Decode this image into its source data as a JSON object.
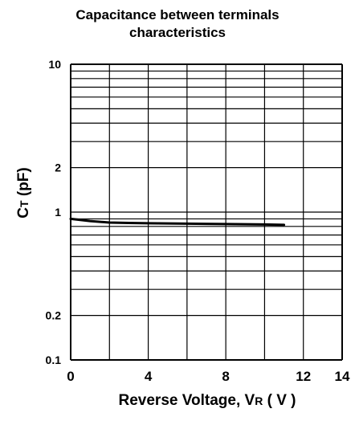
{
  "chart_data": {
    "type": "line",
    "title_line1": "Capacitance between terminals",
    "title_line2": "characteristics",
    "xlabel_main": "Reverse Voltage, V",
    "xlabel_sub": "R",
    "xlabel_unit": " ( V )",
    "ylabel_main": "C",
    "ylabel_sub": "T",
    "ylabel_unit": " (pF)",
    "x_scale": "linear",
    "y_scale": "log",
    "xlim": [
      0,
      14
    ],
    "ylim": [
      0.1,
      10
    ],
    "x_ticks": [
      0,
      4,
      8,
      12,
      14
    ],
    "x_tick_labels": [
      "0",
      "4",
      "8",
      "12",
      "14"
    ],
    "y_tick_labels": [
      {
        "value": 10,
        "label": "10"
      },
      {
        "value": 2,
        "label": "2"
      },
      {
        "value": 1,
        "label": "1"
      },
      {
        "value": 0.2,
        "label": "0.2"
      },
      {
        "value": 0.1,
        "label": "0.1"
      }
    ],
    "grid": true,
    "series": [
      {
        "x": [
          0,
          1,
          2,
          3,
          4,
          6,
          8,
          10,
          11
        ],
        "y": [
          0.9,
          0.87,
          0.85,
          0.845,
          0.84,
          0.835,
          0.83,
          0.825,
          0.82
        ]
      }
    ]
  }
}
